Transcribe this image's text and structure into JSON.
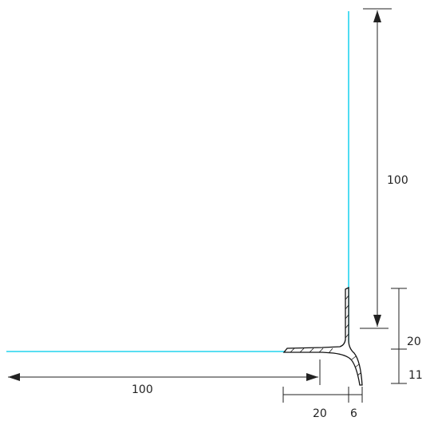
{
  "drawing": {
    "colors": {
      "panel_line": "#22d3ee",
      "ink": "#222222"
    },
    "dimensions": {
      "vertical_leg": "100",
      "horizontal_leg": "100",
      "vertical_upper_offset": "20",
      "vertical_lower_offset": "11",
      "horizontal_flange": "20",
      "horizontal_tip": "6"
    }
  }
}
